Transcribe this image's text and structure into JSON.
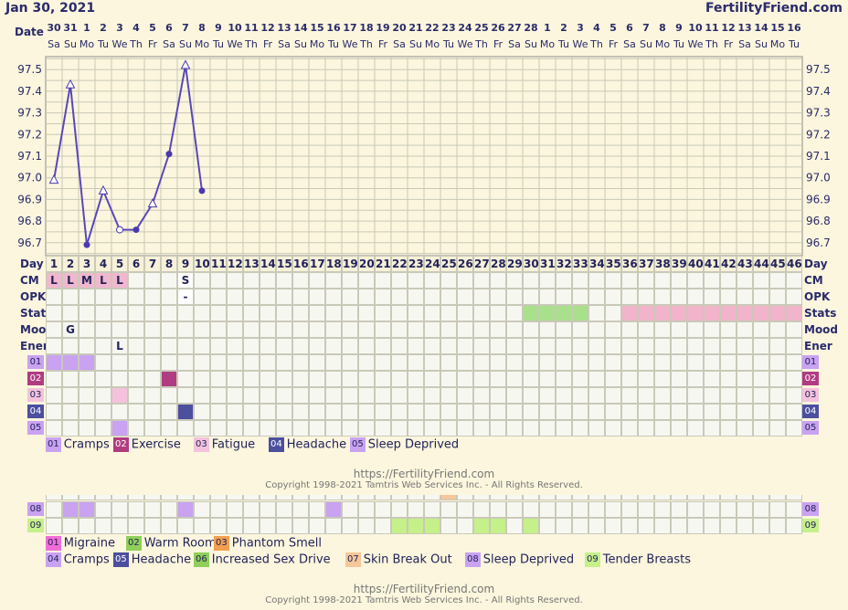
{
  "header": {
    "date": "Jan 30, 2021",
    "site": "FertilityFriend.com"
  },
  "row_labels": {
    "date": "Date",
    "day": "Day",
    "cm": "CM",
    "opk": "OPK",
    "stats": "Stats",
    "mood": "Mood",
    "ener": "Ener"
  },
  "dates": [
    "30",
    "31",
    "1",
    "2",
    "3",
    "4",
    "5",
    "6",
    "7",
    "8",
    "9",
    "10",
    "11",
    "12",
    "13",
    "14",
    "15",
    "16",
    "17",
    "18",
    "19",
    "20",
    "21",
    "22",
    "23",
    "24",
    "25",
    "26",
    "27",
    "28",
    "1",
    "2",
    "3",
    "4",
    "5",
    "6",
    "7",
    "8",
    "9",
    "10",
    "11",
    "12",
    "13",
    "14",
    "15",
    "16"
  ],
  "weekdays": [
    "Sa",
    "Su",
    "Mo",
    "Tu",
    "We",
    "Th",
    "Fr",
    "Sa",
    "Su",
    "Mo",
    "Tu",
    "We",
    "Th",
    "Fr",
    "Sa",
    "Su",
    "Mo",
    "Tu",
    "We",
    "Th",
    "Fr",
    "Sa",
    "Su",
    "Mo",
    "Tu",
    "We",
    "Th",
    "Fr",
    "Sa",
    "Su",
    "Mo",
    "Tu",
    "We",
    "Th",
    "Fr",
    "Sa",
    "Su",
    "Mo",
    "Tu",
    "We",
    "Th",
    "Fr",
    "Sa",
    "Su",
    "Mo",
    "Tu"
  ],
  "cycle_days": [
    "1",
    "2",
    "3",
    "4",
    "5",
    "6",
    "7",
    "8",
    "9",
    "10",
    "11",
    "12",
    "13",
    "14",
    "15",
    "16",
    "17",
    "18",
    "19",
    "20",
    "21",
    "22",
    "23",
    "24",
    "25",
    "26",
    "27",
    "28",
    "29",
    "30",
    "31",
    "32",
    "33",
    "34",
    "35",
    "36",
    "37",
    "38",
    "39",
    "40",
    "41",
    "42",
    "43",
    "44",
    "45",
    "46"
  ],
  "y_ticks": [
    "97.5",
    "97.4",
    "97.3",
    "97.2",
    "97.1",
    "97.0",
    "96.9",
    "96.8",
    "96.7"
  ],
  "chart_data": {
    "type": "line",
    "title": "",
    "xlabel": "Day",
    "ylabel": "",
    "ylim": [
      96.64,
      97.56
    ],
    "grid": true,
    "x": [
      1,
      2,
      3,
      4,
      5,
      6,
      7,
      8,
      9,
      10
    ],
    "series": [
      {
        "values": [
          96.99,
          97.43,
          96.69,
          96.94,
          96.76,
          96.76,
          96.88,
          97.11,
          97.52,
          96.94
        ],
        "markers": [
          "open-triangle",
          "open-triangle",
          "dot",
          "open-triangle",
          "open-circle",
          "dot",
          "open-triangle",
          "dot",
          "open-triangle",
          "dot"
        ]
      }
    ]
  },
  "cm": [
    {
      "day": 1,
      "label": "L",
      "color": "#f0b7cf"
    },
    {
      "day": 2,
      "label": "L",
      "color": "#f0b7cf"
    },
    {
      "day": 3,
      "label": "M",
      "color": "#f0b7cf"
    },
    {
      "day": 4,
      "label": "L",
      "color": "#f0b7cf"
    },
    {
      "day": 5,
      "label": "L",
      "color": "#f0b7cf"
    },
    {
      "day": 9,
      "label": "S",
      "color": "#ffffff"
    }
  ],
  "opk": [
    {
      "day": 9,
      "label": "-"
    }
  ],
  "stats": [
    {
      "from": 30,
      "to": 33,
      "color": "#a9e08b"
    },
    {
      "from": 36,
      "to": 46,
      "color": "#f2b4ca"
    }
  ],
  "mood": [
    {
      "day": 2,
      "label": "G"
    }
  ],
  "ener": [
    {
      "day": 5,
      "label": "L"
    }
  ],
  "symptoms1": {
    "rows": [
      {
        "code": "01",
        "color": "#c9a2f2",
        "days": [
          1,
          2,
          3
        ]
      },
      {
        "code": "02",
        "color": "#b03c82",
        "days": [
          8
        ]
      },
      {
        "code": "03",
        "color": "#f4c2dc",
        "days": [
          5
        ]
      },
      {
        "code": "04",
        "color": "#4b4f9e",
        "days": [
          9
        ]
      },
      {
        "code": "05",
        "color": "#c9a2f2",
        "days": [
          5
        ]
      }
    ],
    "legend": [
      {
        "code": "01",
        "label": "Cramps",
        "color": "#c9a2f2",
        "text_color": "#23235a"
      },
      {
        "code": "02",
        "label": "Exercise",
        "color": "#b03c82",
        "text_color": "#ffffff"
      },
      {
        "code": "03",
        "label": "Fatigue",
        "color": "#f4c2dc",
        "text_color": "#23235a"
      },
      {
        "code": "04",
        "label": "Headache",
        "color": "#4b4f9e",
        "text_color": "#ffffff"
      },
      {
        "code": "05",
        "label": "Sleep Deprived",
        "color": "#c9a2f2",
        "text_color": "#23235a"
      }
    ]
  },
  "symptoms2": {
    "rows": [
      {
        "code": "08",
        "color": "#c9a2f2",
        "days": [
          2,
          3,
          9,
          18
        ]
      },
      {
        "code": "09",
        "color": "#c5f08a",
        "days": [
          22,
          23,
          24,
          27,
          28,
          30
        ]
      }
    ],
    "partial_top_day": 25,
    "legend_row1": [
      {
        "code": "01",
        "label": "Migraine",
        "color": "#f06dd8",
        "text_color": "#23235a"
      },
      {
        "code": "02",
        "label": "Warm Room",
        "color": "#8fcf5a",
        "text_color": "#23235a"
      },
      {
        "code": "03",
        "label": "Phantom Smell",
        "color": "#f0a050",
        "text_color": "#23235a"
      }
    ],
    "legend_row2": [
      {
        "code": "04",
        "label": "Cramps",
        "color": "#c9a2f2",
        "text_color": "#23235a"
      },
      {
        "code": "05",
        "label": "Headache",
        "color": "#4b4f9e",
        "text_color": "#ffffff"
      },
      {
        "code": "06",
        "label": "Increased Sex Drive",
        "color": "#8fcf5a",
        "text_color": "#23235a"
      },
      {
        "code": "07",
        "label": "Skin Break Out",
        "color": "#f6c79a",
        "text_color": "#23235a"
      },
      {
        "code": "08",
        "label": "Sleep Deprived",
        "color": "#c9a2f2",
        "text_color": "#23235a"
      },
      {
        "code": "09",
        "label": "Tender Breasts",
        "color": "#c5f08a",
        "text_color": "#23235a"
      }
    ]
  },
  "footer": {
    "url": "https://FertilityFriend.com",
    "copyright": "Copyright 1998-2021 Tamtris Web Services Inc. - All Rights Reserved."
  }
}
